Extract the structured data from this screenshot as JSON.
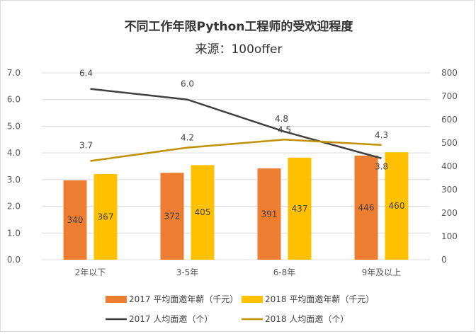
{
  "chart_data": {
    "type": "bar",
    "title": "不同工作年限Python工程师的受欢迎程度",
    "subtitle": "来源：100offer",
    "categories": [
      "2年以下",
      "3-5年",
      "6-8年",
      "9年及以上"
    ],
    "left_axis": {
      "min": 0,
      "max": 7,
      "step": 1,
      "decimals": 1
    },
    "right_axis": {
      "min": 0,
      "max": 800,
      "step": 100,
      "decimals": 0
    },
    "bar_series": [
      {
        "name": "2017 平均面邀年薪（千元）",
        "values": [
          340,
          372,
          391,
          446
        ],
        "labels": [
          "340",
          "372",
          "391",
          "446"
        ],
        "color": "#ED7D31"
      },
      {
        "name": "2018 平均面邀年薪（千元）",
        "values": [
          367,
          405,
          437,
          460
        ],
        "labels": [
          "367",
          "405",
          "437",
          "460"
        ],
        "color": "#FFC000"
      }
    ],
    "line_series": [
      {
        "name": "2017 人均面邀（个）",
        "values": [
          6.4,
          6.0,
          4.8,
          3.8
        ],
        "labels": [
          "6.4",
          "6.0",
          "4.8",
          "3.8"
        ],
        "color": "#404040"
      },
      {
        "name": "2018 人均面邀（个）",
        "values": [
          3.7,
          4.2,
          4.5,
          4.3
        ],
        "labels": [
          "3.7",
          "4.2",
          "4.5",
          "4.3"
        ],
        "color": "#BF9000"
      }
    ],
    "grid": true,
    "legend_position": "bottom"
  }
}
